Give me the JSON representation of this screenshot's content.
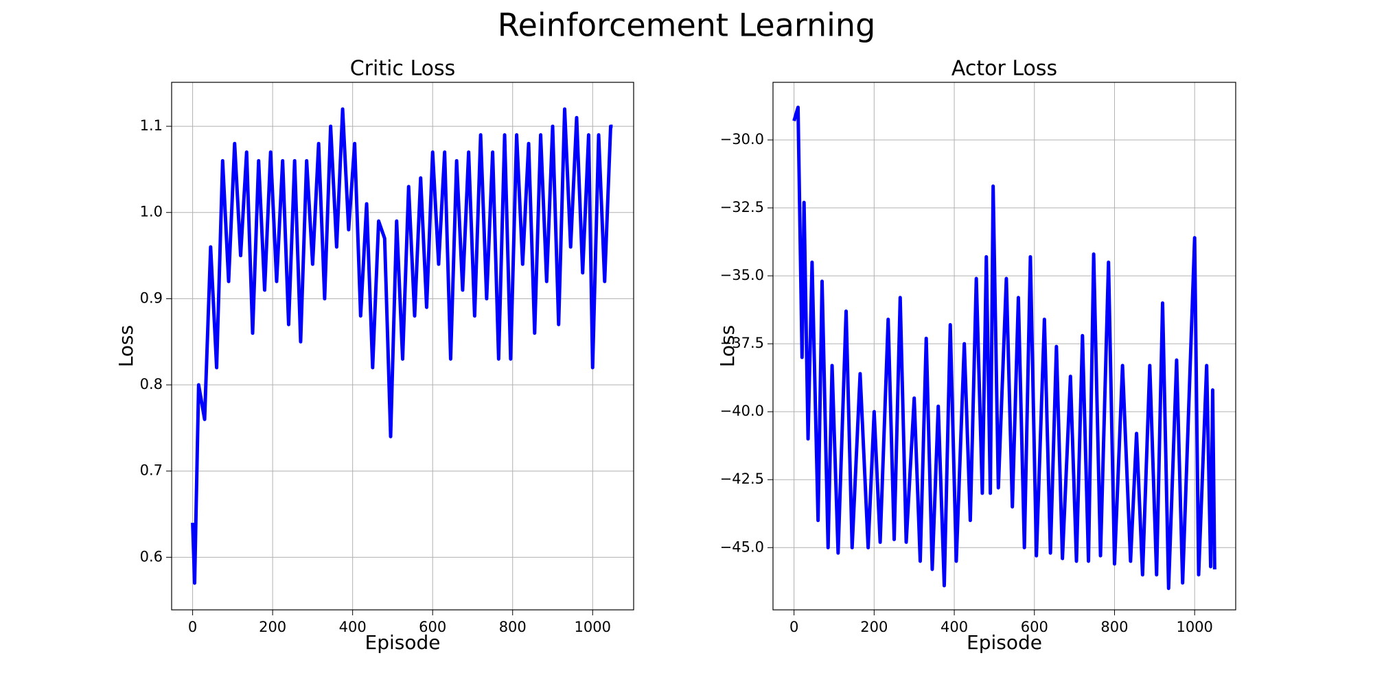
{
  "title": "Reinforcement Learning",
  "chart_data": [
    {
      "type": "line",
      "title": "Critic Loss",
      "x_label": "Episode",
      "y_label": "Loss",
      "grid": true,
      "xlim": [
        -52.5,
        1102.5
      ],
      "ylim": [
        0.539,
        1.151
      ],
      "xticks": [
        0,
        200,
        400,
        600,
        800,
        1000
      ],
      "yticks": [
        0.6,
        0.7,
        0.8,
        0.9,
        {
          "value": 1.0,
          "label": "1.0"
        },
        1.1
      ],
      "x": [
        0,
        5,
        15,
        30,
        45,
        60,
        75,
        90,
        105,
        120,
        135,
        150,
        165,
        180,
        195,
        210,
        225,
        240,
        255,
        270,
        285,
        300,
        315,
        330,
        345,
        360,
        375,
        390,
        405,
        420,
        435,
        450,
        465,
        480,
        495,
        510,
        525,
        540,
        555,
        570,
        585,
        600,
        615,
        630,
        645,
        660,
        675,
        690,
        705,
        720,
        735,
        750,
        765,
        780,
        795,
        810,
        825,
        840,
        855,
        870,
        885,
        900,
        915,
        930,
        945,
        960,
        975,
        990,
        1000,
        1015,
        1030,
        1045,
        1050
      ],
      "color": "#0000ff",
      "values": [
        0.64,
        0.57,
        0.8,
        0.76,
        0.96,
        0.82,
        1.06,
        0.92,
        1.08,
        0.95,
        1.07,
        0.86,
        1.06,
        0.91,
        1.07,
        0.92,
        1.06,
        0.87,
        1.06,
        0.85,
        1.06,
        0.94,
        1.08,
        0.9,
        1.1,
        0.96,
        1.12,
        0.98,
        1.08,
        0.88,
        1.01,
        0.82,
        0.99,
        0.97,
        0.74,
        0.99,
        0.83,
        1.03,
        0.88,
        1.04,
        0.89,
        1.07,
        0.94,
        1.07,
        0.83,
        1.06,
        0.91,
        1.07,
        0.88,
        1.09,
        0.9,
        1.07,
        0.83,
        1.09,
        0.83,
        1.09,
        0.94,
        1.08,
        0.86,
        1.09,
        0.92,
        1.1,
        0.87,
        1.12,
        0.96,
        1.11,
        0.93,
        1.09,
        0.82,
        1.09,
        0.92,
        1.1,
        1.1
      ]
    },
    {
      "type": "line",
      "title": "Actor Loss",
      "x_label": "Episode",
      "y_label": "Loss",
      "grid": true,
      "xlim": [
        -52.5,
        1102.5
      ],
      "ylim": [
        -47.29,
        -27.88
      ],
      "xticks": [
        0,
        200,
        400,
        600,
        800,
        1000
      ],
      "yticks": [
        {
          "value": -30,
          "label": "−30.0"
        },
        {
          "value": -32.5,
          "label": "−32.5"
        },
        {
          "value": -35,
          "label": "−35.0"
        },
        {
          "value": -37.5,
          "label": "−37.5"
        },
        {
          "value": -40,
          "label": "−40.0"
        },
        {
          "value": -42.5,
          "label": "−42.5"
        },
        {
          "value": -45,
          "label": "−45.0"
        }
      ],
      "x": [
        0,
        10,
        20,
        25,
        35,
        45,
        60,
        70,
        85,
        95,
        110,
        130,
        145,
        165,
        185,
        200,
        215,
        235,
        250,
        265,
        280,
        300,
        315,
        330,
        345,
        360,
        375,
        390,
        405,
        425,
        440,
        455,
        470,
        480,
        490,
        497,
        510,
        530,
        545,
        560,
        575,
        590,
        605,
        625,
        640,
        655,
        670,
        690,
        705,
        720,
        735,
        748,
        765,
        785,
        800,
        820,
        840,
        855,
        870,
        888,
        905,
        920,
        935,
        955,
        970,
        1000,
        1010,
        1030,
        1040,
        1045,
        1050
      ],
      "color": "#0000ff",
      "values": [
        -29.3,
        -28.8,
        -38,
        -32.3,
        -41,
        -34.5,
        -44,
        -35.2,
        -45,
        -38.3,
        -45.2,
        -36.3,
        -45,
        -38.6,
        -45,
        -40,
        -44.8,
        -36.6,
        -44.7,
        -35.8,
        -44.8,
        -39.5,
        -45.5,
        -37.3,
        -45.8,
        -39.8,
        -46.4,
        -36.8,
        -45.5,
        -37.5,
        -44,
        -35.1,
        -43,
        -34.3,
        -43,
        -31.7,
        -42.8,
        -35.1,
        -43.5,
        -35.8,
        -45,
        -34.3,
        -45.3,
        -36.6,
        -45.2,
        -37.6,
        -45.4,
        -38.7,
        -45.5,
        -37.2,
        -45.5,
        -34.2,
        -45.3,
        -34.5,
        -45.6,
        -38.3,
        -45.5,
        -40.8,
        -46,
        -38.3,
        -46,
        -36,
        -46.5,
        -38.1,
        -46.3,
        -33.6,
        -46,
        -38.3,
        -45.7,
        -39.2,
        -45.8
      ]
    }
  ]
}
